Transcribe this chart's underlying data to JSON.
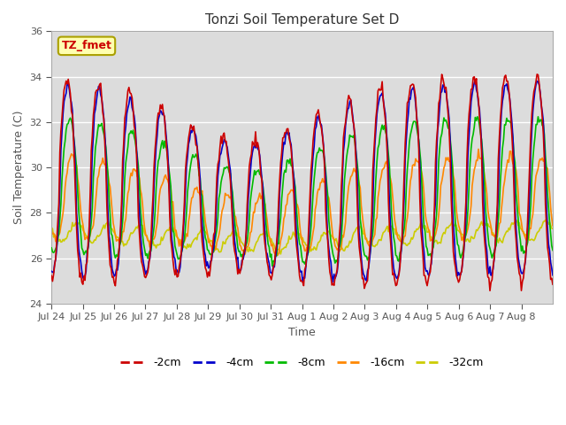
{
  "title": "Tonzi Soil Temperature Set D",
  "xlabel": "Time",
  "ylabel": "Soil Temperature (C)",
  "ylim": [
    24,
    36
  ],
  "yticks": [
    24,
    26,
    28,
    30,
    32,
    34,
    36
  ],
  "annotation": "TZ_fmet",
  "bg_color": "#dcdcdc",
  "line_colors": {
    "-2cm": "#cc0000",
    "-4cm": "#0000cc",
    "-8cm": "#00bb00",
    "-16cm": "#ff8800",
    "-32cm": "#cccc00"
  },
  "legend_labels": [
    "-2cm",
    "-4cm",
    "-8cm",
    "-16cm",
    "-32cm"
  ],
  "x_tick_labels": [
    "Jul 24",
    "Jul 25",
    "Jul 26",
    "Jul 27",
    "Jul 28",
    "Jul 29",
    "Jul 30",
    "Jul 31",
    "Aug 1",
    "Aug 2",
    "Aug 3",
    "Aug 4",
    "Aug 5",
    "Aug 6",
    "Aug 7",
    "Aug 8"
  ],
  "days": 16,
  "n_points": 480
}
